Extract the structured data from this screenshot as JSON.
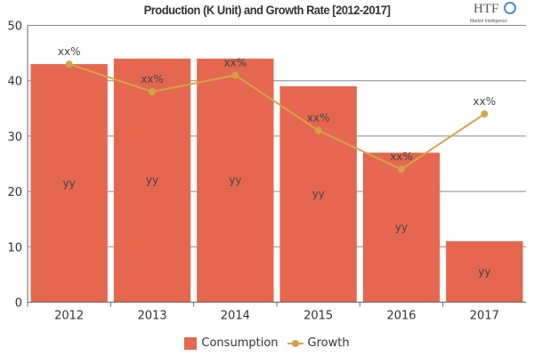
{
  "chart_data": {
    "type": "bar",
    "title": "Production (K Unit) and Growth Rate [2012-2017]",
    "categories": [
      "2012",
      "2013",
      "2014",
      "2015",
      "2016",
      "2017"
    ],
    "ylim": [
      0,
      50
    ],
    "yticks": [
      0,
      10,
      20,
      30,
      40,
      50
    ],
    "grid": true,
    "legend_position": "bottom",
    "series": [
      {
        "name": "Consumption",
        "type": "bar",
        "color": "#e5674f",
        "values": [
          43,
          44,
          44,
          39,
          27,
          11
        ],
        "data_labels": [
          "yy",
          "yy",
          "yy",
          "yy",
          "yy",
          "yy"
        ]
      },
      {
        "name": "Growth",
        "type": "line",
        "color": "#d2a447",
        "values": [
          43,
          38,
          41,
          31,
          24,
          34
        ],
        "data_labels": [
          "xx%",
          "xx%",
          "xx%",
          "xx%",
          "xx%",
          "xx%"
        ]
      }
    ]
  },
  "logo": {
    "text": "HTF",
    "subtext": "Market Intelligence"
  }
}
